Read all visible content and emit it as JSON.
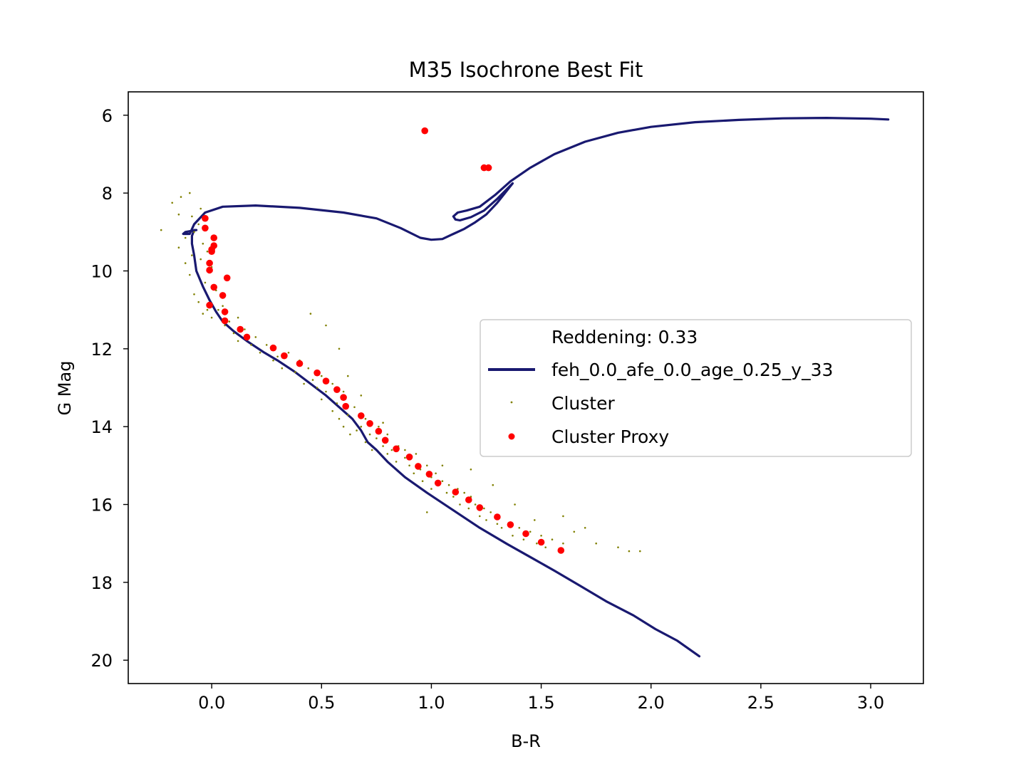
{
  "chart_data": {
    "type": "scatter",
    "title": "M35 Isochrone Best Fit",
    "xlabel": "B-R",
    "ylabel": "G Mag",
    "xlim": [
      -0.38,
      3.24
    ],
    "ylim": [
      20.6,
      5.4
    ],
    "y_inverted": true,
    "xticks": [
      0.0,
      0.5,
      1.0,
      1.5,
      2.0,
      2.5,
      3.0
    ],
    "xtick_labels": [
      "0.0",
      "0.5",
      "1.0",
      "1.5",
      "2.0",
      "2.5",
      "3.0"
    ],
    "yticks": [
      6,
      8,
      10,
      12,
      14,
      16,
      18,
      20
    ],
    "ytick_labels": [
      "6",
      "8",
      "10",
      "12",
      "14",
      "16",
      "18",
      "20"
    ],
    "grid": false,
    "legend": {
      "placement": "center-right",
      "entries": [
        {
          "label": "Reddening: 0.33",
          "marker": "none"
        },
        {
          "label": "feh_0.0_afe_0.0_age_0.25_y_33",
          "marker": "line",
          "color": "#191970"
        },
        {
          "label": "Cluster",
          "marker": "small-dot",
          "color": "#808000"
        },
        {
          "label": "Cluster Proxy",
          "marker": "dot",
          "color": "#ff0000"
        }
      ]
    },
    "series": [
      {
        "name": "feh_0.0_afe_0.0_age_0.25_y_33",
        "kind": "line",
        "color": "#191970",
        "x": [
          2.22,
          2.12,
          2.02,
          1.92,
          1.8,
          1.68,
          1.56,
          1.45,
          1.34,
          1.22,
          1.1,
          0.98,
          0.88,
          0.8,
          0.75,
          0.71,
          0.68,
          0.64,
          0.58,
          0.52,
          0.45,
          0.38,
          0.3,
          0.24,
          0.16,
          0.1,
          0.05,
          0.02,
          -0.01,
          -0.04,
          -0.07,
          -0.08,
          -0.09,
          -0.09,
          -0.08,
          -0.07,
          -0.12,
          -0.13,
          -0.1,
          -0.08,
          -0.03,
          0.05,
          0.2,
          0.4,
          0.6,
          0.75,
          0.86,
          0.95,
          1.0,
          1.05,
          1.1,
          1.15,
          1.2,
          1.25,
          1.3,
          1.37,
          1.3,
          1.24,
          1.18,
          1.13,
          1.11,
          1.1,
          1.12,
          1.16,
          1.22,
          1.29,
          1.36,
          1.45,
          1.56,
          1.7,
          1.85,
          2.0,
          2.2,
          2.4,
          2.6,
          2.8,
          3.0,
          3.08
        ],
        "y": [
          19.9,
          19.5,
          19.2,
          18.85,
          18.5,
          18.1,
          17.7,
          17.35,
          17.0,
          16.6,
          16.15,
          15.7,
          15.3,
          14.9,
          14.6,
          14.4,
          14.1,
          13.8,
          13.5,
          13.2,
          12.9,
          12.6,
          12.3,
          12.1,
          11.8,
          11.55,
          11.3,
          11.05,
          10.75,
          10.4,
          10.0,
          9.6,
          9.3,
          9.1,
          8.95,
          8.95,
          9.0,
          9.05,
          9.05,
          8.8,
          8.5,
          8.35,
          8.32,
          8.38,
          8.5,
          8.65,
          8.9,
          9.15,
          9.2,
          9.18,
          9.05,
          8.92,
          8.75,
          8.55,
          8.25,
          7.75,
          8.15,
          8.45,
          8.62,
          8.7,
          8.68,
          8.6,
          8.5,
          8.45,
          8.35,
          8.05,
          7.7,
          7.35,
          7.0,
          6.68,
          6.45,
          6.3,
          6.18,
          6.12,
          6.08,
          6.07,
          6.09,
          6.11
        ]
      },
      {
        "name": "Cluster",
        "kind": "scatter",
        "color": "#808000",
        "x": [
          -0.23,
          -0.18,
          -0.15,
          -0.15,
          -0.14,
          -0.12,
          -0.12,
          -0.1,
          -0.1,
          -0.09,
          -0.09,
          -0.08,
          -0.08,
          -0.06,
          -0.06,
          -0.05,
          -0.05,
          -0.04,
          -0.04,
          -0.03,
          -0.03,
          -0.02,
          -0.02,
          0.0,
          0.0,
          0.02,
          0.03,
          0.05,
          0.06,
          0.08,
          0.1,
          0.12,
          0.12,
          0.15,
          0.18,
          0.2,
          0.22,
          0.25,
          0.28,
          0.3,
          0.32,
          0.35,
          0.38,
          0.4,
          0.42,
          0.44,
          0.46,
          0.48,
          0.5,
          0.5,
          0.52,
          0.55,
          0.55,
          0.57,
          0.58,
          0.6,
          0.6,
          0.62,
          0.63,
          0.65,
          0.66,
          0.68,
          0.7,
          0.7,
          0.72,
          0.73,
          0.75,
          0.76,
          0.78,
          0.8,
          0.8,
          0.82,
          0.84,
          0.85,
          0.88,
          0.9,
          0.92,
          0.93,
          0.95,
          0.96,
          0.98,
          1.0,
          1.0,
          1.02,
          1.03,
          1.05,
          1.07,
          1.08,
          1.1,
          1.12,
          1.13,
          1.15,
          1.17,
          1.18,
          1.2,
          1.22,
          1.24,
          1.25,
          1.27,
          1.3,
          1.3,
          1.32,
          1.35,
          1.37,
          1.4,
          1.42,
          1.45,
          1.48,
          1.5,
          1.52,
          1.55,
          1.58,
          1.6,
          1.65,
          1.7,
          1.75,
          1.85,
          1.9,
          1.95,
          0.45,
          0.52,
          0.58,
          0.62,
          0.68,
          0.78,
          0.88,
          1.05,
          1.18,
          1.28,
          1.38,
          1.47,
          0.98,
          1.6
        ],
        "y": [
          8.95,
          8.25,
          8.55,
          9.4,
          8.1,
          9.15,
          9.8,
          8.0,
          10.1,
          8.6,
          9.6,
          9.0,
          10.6,
          8.8,
          10.8,
          8.4,
          9.7,
          9.3,
          11.1,
          8.7,
          10.3,
          9.5,
          11.0,
          9.9,
          11.2,
          10.5,
          11.0,
          10.9,
          11.4,
          11.3,
          11.6,
          11.2,
          11.8,
          11.5,
          11.9,
          11.7,
          12.1,
          11.9,
          12.3,
          12.2,
          12.5,
          12.1,
          12.6,
          12.3,
          12.9,
          12.5,
          12.8,
          13.0,
          12.7,
          13.3,
          13.1,
          12.9,
          13.6,
          13.4,
          13.8,
          13.1,
          14.0,
          13.7,
          14.2,
          13.5,
          14.1,
          14.0,
          14.4,
          13.8,
          14.2,
          14.6,
          14.3,
          14.0,
          14.5,
          14.7,
          14.2,
          14.6,
          14.9,
          14.5,
          14.8,
          15.0,
          15.2,
          14.7,
          15.1,
          15.4,
          15.0,
          15.3,
          15.6,
          15.2,
          15.5,
          15.4,
          15.7,
          15.5,
          15.8,
          15.6,
          16.0,
          15.7,
          16.1,
          15.8,
          16.0,
          16.3,
          16.1,
          16.4,
          16.2,
          16.5,
          16.3,
          16.6,
          16.5,
          16.8,
          16.6,
          16.9,
          16.7,
          17.0,
          16.8,
          17.1,
          16.9,
          17.2,
          17.0,
          16.7,
          16.6,
          17.0,
          17.1,
          17.2,
          17.2,
          11.1,
          11.4,
          12.0,
          12.7,
          13.2,
          13.9,
          14.6,
          15.0,
          15.1,
          15.5,
          16.0,
          16.4,
          16.2,
          16.3
        ]
      },
      {
        "name": "Cluster Proxy",
        "kind": "scatter",
        "color": "#ff0000",
        "x": [
          0.97,
          1.24,
          1.26,
          -0.03,
          -0.03,
          0.01,
          0.01,
          0.0,
          0.0,
          -0.01,
          -0.01,
          0.07,
          0.01,
          0.05,
          -0.01,
          0.06,
          0.06,
          0.13,
          0.16,
          0.28,
          0.33,
          0.4,
          0.48,
          0.52,
          0.57,
          0.6,
          0.61,
          0.68,
          0.72,
          0.76,
          0.79,
          0.84,
          0.9,
          0.94,
          0.99,
          1.03,
          1.11,
          1.17,
          1.22,
          1.3,
          1.36,
          1.43,
          1.5,
          1.59
        ],
        "y": [
          6.4,
          7.35,
          7.35,
          8.65,
          8.9,
          9.15,
          9.35,
          9.45,
          9.5,
          9.8,
          9.98,
          10.18,
          10.42,
          10.63,
          10.88,
          11.05,
          11.28,
          11.5,
          11.7,
          11.98,
          12.18,
          12.38,
          12.62,
          12.83,
          13.05,
          13.25,
          13.48,
          13.72,
          13.92,
          14.12,
          14.35,
          14.57,
          14.78,
          15.02,
          15.22,
          15.45,
          15.68,
          15.88,
          16.08,
          16.32,
          16.52,
          16.75,
          16.97,
          17.18
        ]
      }
    ]
  }
}
